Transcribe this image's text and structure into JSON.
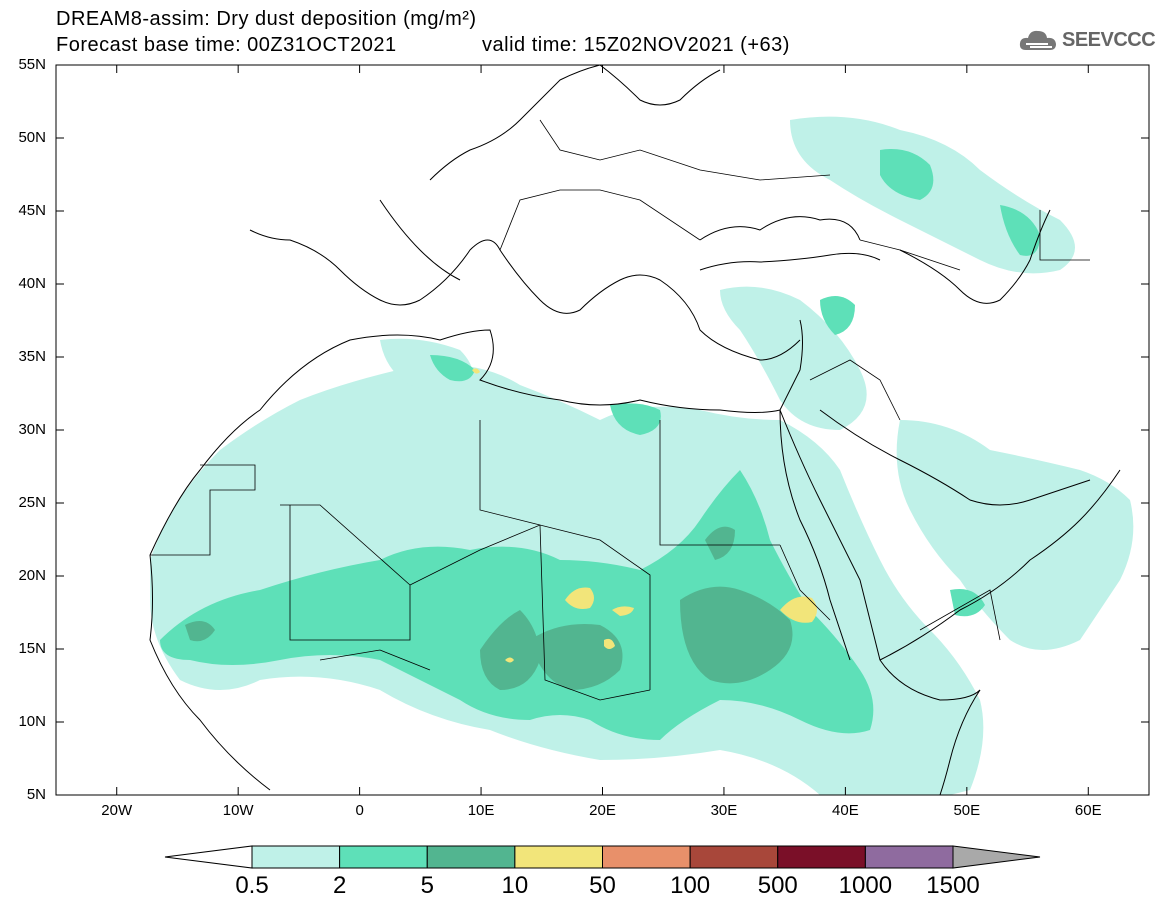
{
  "header": {
    "title_line1": "DREAM8-assim: Dry dust deposition (mg/m²)",
    "title_line2": "Forecast base time: 00Z31OCT2021",
    "valid_time": "valid time: 15Z02NOV2021 (+63)",
    "logo_text": "SEEVCCC",
    "logo_icon": "cloud-icon"
  },
  "map": {
    "lat_labels": [
      "55N",
      "50N",
      "45N",
      "40N",
      "35N",
      "30N",
      "25N",
      "20N",
      "15N",
      "10N",
      "5N"
    ],
    "lon_labels": [
      "20W",
      "10W",
      "0",
      "10E",
      "20E",
      "30E",
      "40E",
      "50E",
      "60E"
    ],
    "lat_range": [
      5,
      55
    ],
    "lon_range": [
      -25,
      65
    ]
  },
  "legend": {
    "levels": [
      "0.5",
      "2",
      "5",
      "10",
      "50",
      "100",
      "500",
      "1000",
      "1500"
    ],
    "colors": [
      "#ffffff",
      "#bff1e8",
      "#5ee0b8",
      "#52b590",
      "#f2e57a",
      "#e8906a",
      "#a8473a",
      "#7a0f28",
      "#8f6b9f",
      "#a9a9a9"
    ]
  }
}
